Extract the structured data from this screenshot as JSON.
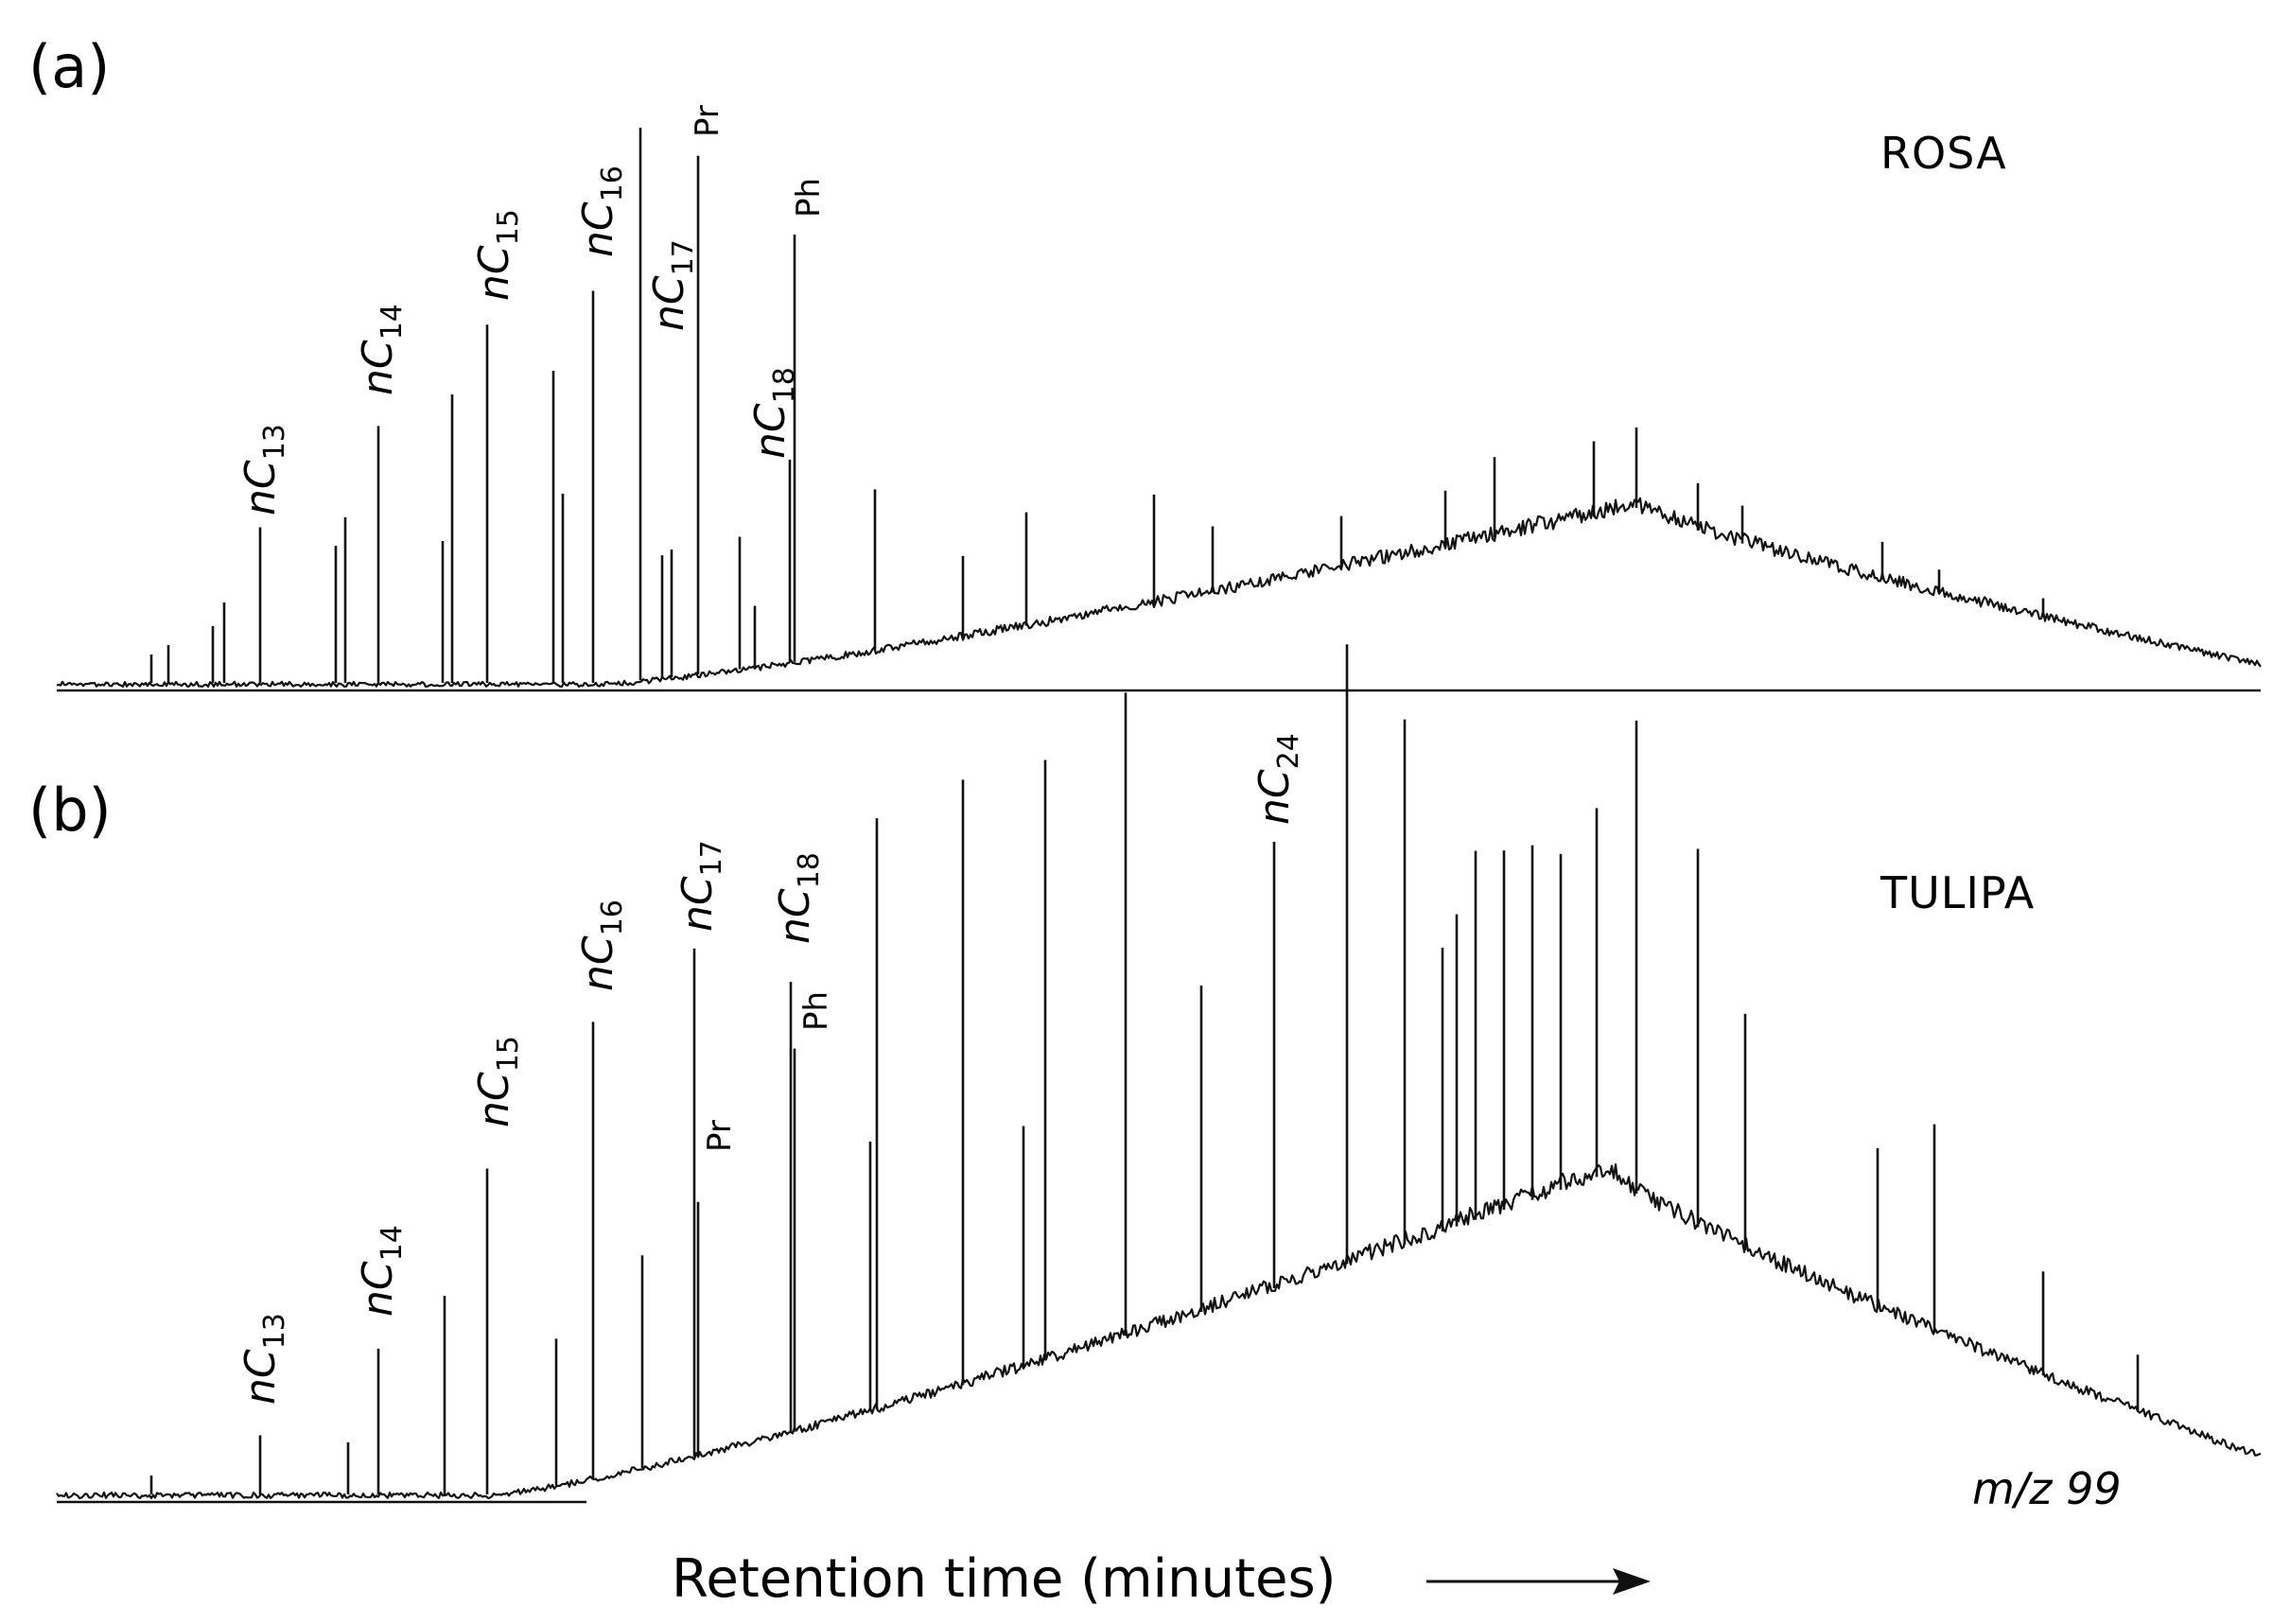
{
  "chart_data": [
    {
      "type": "line",
      "panel": "(a)",
      "sample": "ROSA",
      "peaks": [
        {
          "label": "nC",
          "sub": "13",
          "height": 0.29
        },
        {
          "label": "nC",
          "sub": "14",
          "height": 0.47
        },
        {
          "label": "nC",
          "sub": "15",
          "height": 0.65
        },
        {
          "label": "nC",
          "sub": "16",
          "height": 0.71
        },
        {
          "label": "nC",
          "sub": "17",
          "height": 1.0
        },
        {
          "label": "Pr",
          "height": 0.95
        },
        {
          "label": "nC",
          "sub": "18",
          "height": 0.41
        },
        {
          "label": "Ph",
          "height": 0.81
        }
      ]
    },
    {
      "type": "line",
      "panel": "(b)",
      "sample": "TULIPA",
      "peaks": [
        {
          "label": "nC",
          "sub": "13",
          "height": 0.1
        },
        {
          "label": "nC",
          "sub": "14",
          "height": 0.23
        },
        {
          "label": "nC",
          "sub": "15",
          "height": 0.5
        },
        {
          "label": "nC",
          "sub": "16",
          "height": 0.72
        },
        {
          "label": "nC",
          "sub": "17",
          "height": 0.83
        },
        {
          "label": "Pr",
          "height": 0.45
        },
        {
          "label": "nC",
          "sub": "18",
          "height": 0.78
        },
        {
          "label": "Ph",
          "height": 0.68
        },
        {
          "label": "nC",
          "sub": "24",
          "height": 0.99
        }
      ]
    }
  ],
  "xlabel": "Retention time (minutes)",
  "annotation": "m/z 99"
}
